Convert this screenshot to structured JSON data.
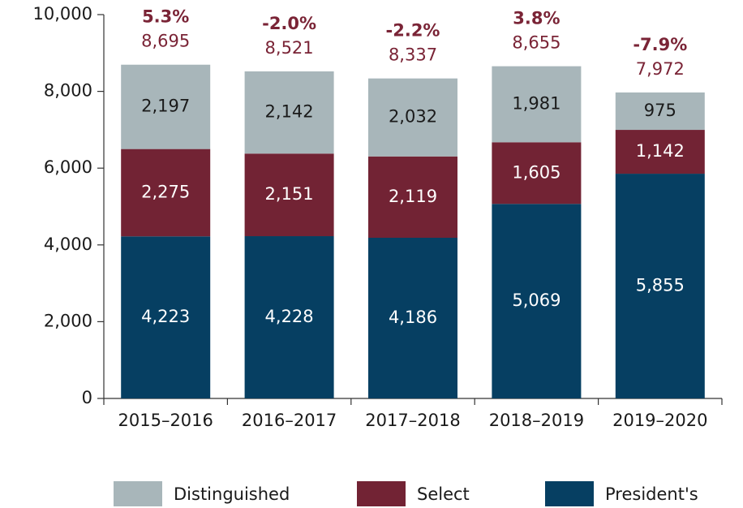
{
  "chart_data": {
    "type": "stacked_bar",
    "categories": [
      "2015–2016",
      "2016–2017",
      "2017–2018",
      "2018–2019",
      "2019–2020"
    ],
    "series": [
      {
        "name": "President's",
        "color": "#063f62",
        "values": [
          4223,
          4228,
          4186,
          5069,
          5855
        ],
        "value_labels": [
          "4,223",
          "4,228",
          "4,186",
          "5,069",
          "5,855"
        ]
      },
      {
        "name": "Select",
        "color": "#722334",
        "values": [
          2275,
          2151,
          2119,
          1605,
          1142
        ],
        "value_labels": [
          "2,275",
          "2,151",
          "2,119",
          "1,605",
          "1,142"
        ]
      },
      {
        "name": "Distinguished",
        "color": "#a8b6ba",
        "values": [
          2197,
          2142,
          2032,
          1981,
          975
        ],
        "value_labels": [
          "2,197",
          "2,142",
          "2,032",
          "1,981",
          "975"
        ]
      }
    ],
    "totals": [
      8695,
      8521,
      8337,
      8655,
      7972
    ],
    "total_labels": [
      "8,695",
      "8,521",
      "8,337",
      "8,655",
      "7,972"
    ],
    "changes": [
      5.3,
      -2.0,
      -2.2,
      3.8,
      -7.9
    ],
    "change_labels": [
      "5.3%",
      "-2.0%",
      "-2.2%",
      "3.8%",
      "-7.9%"
    ],
    "ylim": [
      0,
      10000
    ],
    "yticks": [
      0,
      {
        "value": 2000,
        "label": "2,000"
      },
      {
        "value": 4000,
        "label": "4,000"
      },
      {
        "value": 6000,
        "label": "6,000"
      },
      {
        "value": 8000,
        "label": "8,000"
      },
      {
        "value": 10000,
        "label": "10,000"
      }
    ],
    "grid": false
  }
}
